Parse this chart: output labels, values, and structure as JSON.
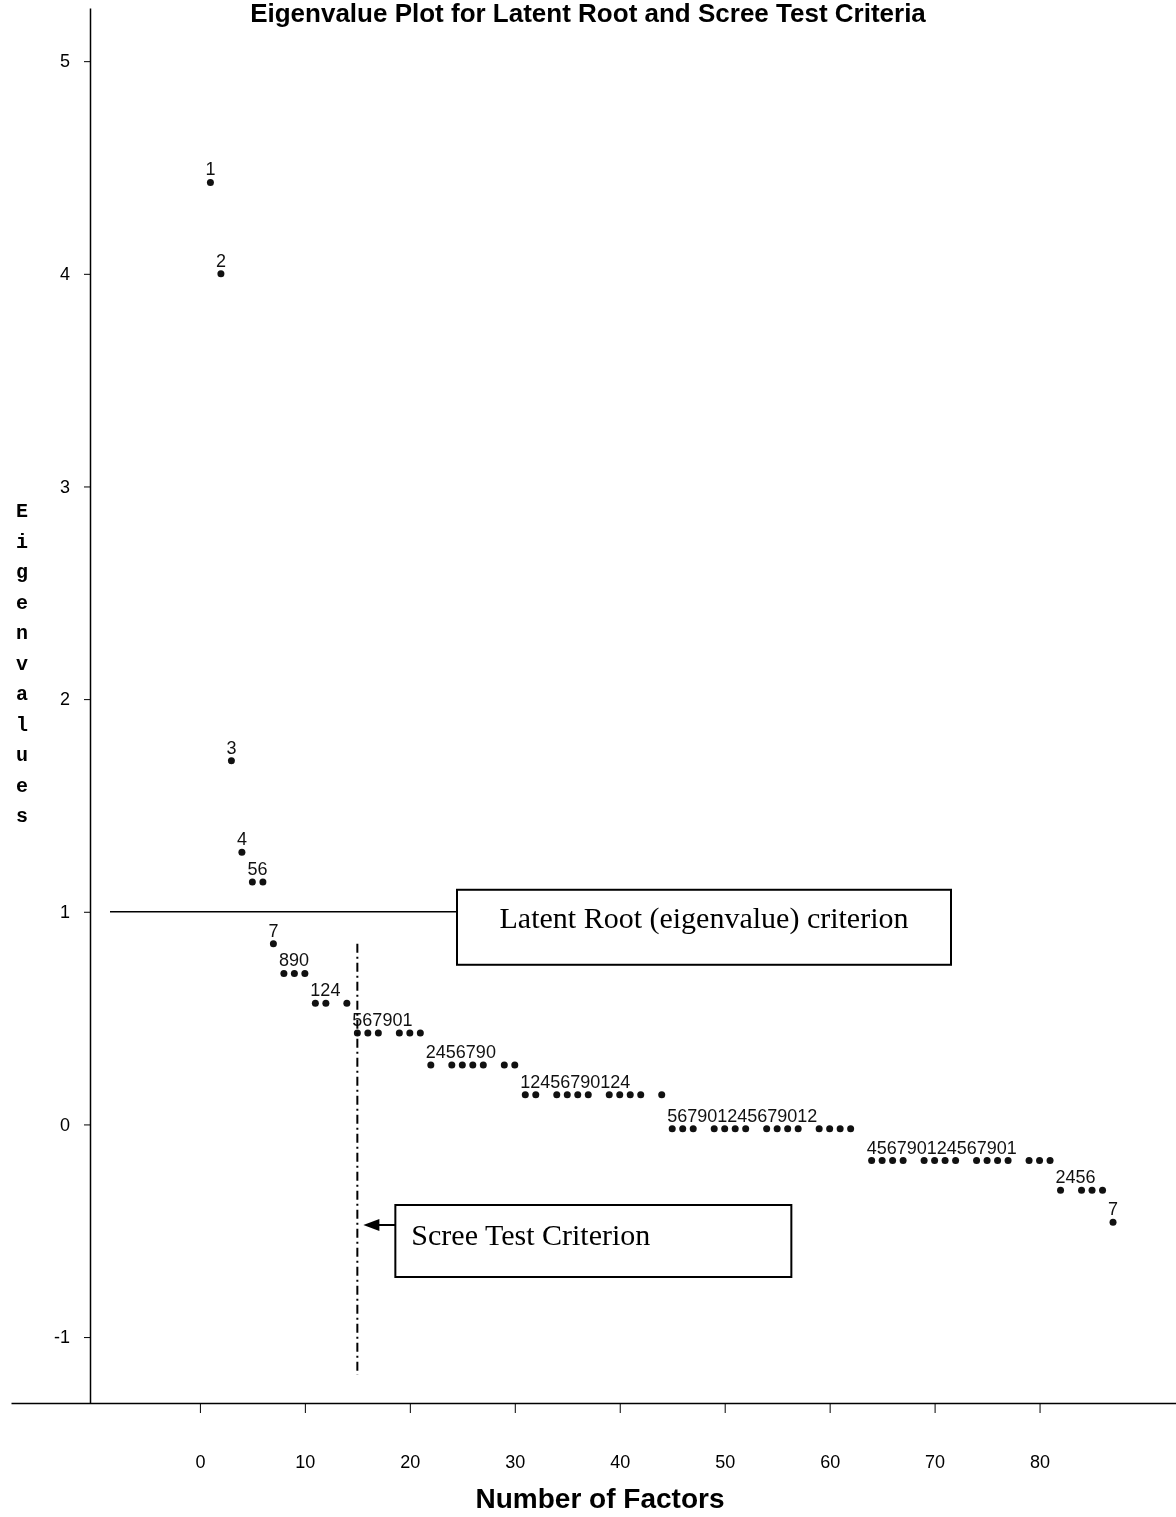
{
  "chart_data": {
    "type": "scatter",
    "title": "Eigenvalue Plot for Latent Root and Scree Test Criteria",
    "xlabel": "Number of Factors",
    "ylabel": "Eigenvalues",
    "x": [
      1,
      2,
      3,
      4,
      5,
      6,
      7,
      8,
      9,
      10,
      11,
      12,
      14,
      15,
      16,
      17,
      19,
      20,
      21,
      22,
      24,
      25,
      26,
      27,
      29,
      30,
      31,
      32,
      34,
      35,
      36,
      37,
      39,
      40,
      41,
      42,
      44,
      45,
      46,
      47,
      49,
      50,
      51,
      52,
      54,
      55,
      56,
      57,
      59,
      60,
      61,
      62,
      64,
      65,
      66,
      67,
      69,
      70,
      71,
      72,
      74,
      75,
      76,
      77,
      79,
      80,
      81,
      82,
      84,
      85,
      86,
      87
    ],
    "values": [
      4.43,
      4.0,
      1.71,
      1.28,
      1.14,
      1.14,
      0.85,
      0.71,
      0.71,
      0.71,
      0.57,
      0.57,
      0.57,
      0.43,
      0.43,
      0.43,
      0.43,
      0.43,
      0.43,
      0.28,
      0.28,
      0.28,
      0.28,
      0.28,
      0.28,
      0.28,
      0.14,
      0.14,
      0.14,
      0.14,
      0.14,
      0.14,
      0.14,
      0.14,
      0.14,
      0.14,
      0.14,
      -0.02,
      -0.02,
      -0.02,
      -0.02,
      -0.02,
      -0.02,
      -0.02,
      -0.02,
      -0.02,
      -0.02,
      -0.02,
      -0.02,
      -0.02,
      -0.02,
      -0.02,
      -0.17,
      -0.17,
      -0.17,
      -0.17,
      -0.17,
      -0.17,
      -0.17,
      -0.17,
      -0.17,
      -0.17,
      -0.17,
      -0.17,
      -0.17,
      -0.17,
      -0.17,
      -0.31,
      -0.31,
      -0.31,
      -0.31,
      -0.46
    ],
    "annotations": [
      {
        "text": "1",
        "x": 1,
        "y": 4.43
      },
      {
        "text": "2",
        "x": 2,
        "y": 4.0
      },
      {
        "text": "3",
        "x": 3,
        "y": 1.71
      },
      {
        "text": "4",
        "x": 4,
        "y": 1.28
      },
      {
        "text": "56",
        "x": 5,
        "y": 1.14
      },
      {
        "text": "7",
        "x": 7,
        "y": 0.85
      },
      {
        "text": "890",
        "x": 8,
        "y": 0.71
      },
      {
        "text": "124",
        "x": 11,
        "y": 0.57
      },
      {
        "text": "567901",
        "x": 15,
        "y": 0.43
      },
      {
        "text": "2456790",
        "x": 22,
        "y": 0.28
      },
      {
        "text": "12456790124",
        "x": 31,
        "y": 0.14
      },
      {
        "text": "567901245679012",
        "x": 45,
        "y": -0.02
      },
      {
        "text": "456790124567901",
        "x": 64,
        "y": -0.17
      },
      {
        "text": "2456",
        "x": 82,
        "y": -0.31
      },
      {
        "text": "7",
        "x": 87,
        "y": -0.46
      }
    ],
    "xlim": [
      -18,
      93
    ],
    "ylim": [
      -1.31,
      5.25
    ],
    "xticks": [
      0,
      10,
      20,
      30,
      40,
      50,
      60,
      70,
      80
    ],
    "yticks": [
      -1,
      0,
      1,
      2,
      3,
      4,
      5
    ],
    "ref_lines": [
      {
        "axis": "y",
        "value": 1,
        "label": "Latent Root (eigenvalue) criterion",
        "line_style": "solid"
      },
      {
        "axis": "x",
        "value": 15,
        "label": "Scree Test Criterion",
        "line_style": "dashdot"
      }
    ]
  }
}
